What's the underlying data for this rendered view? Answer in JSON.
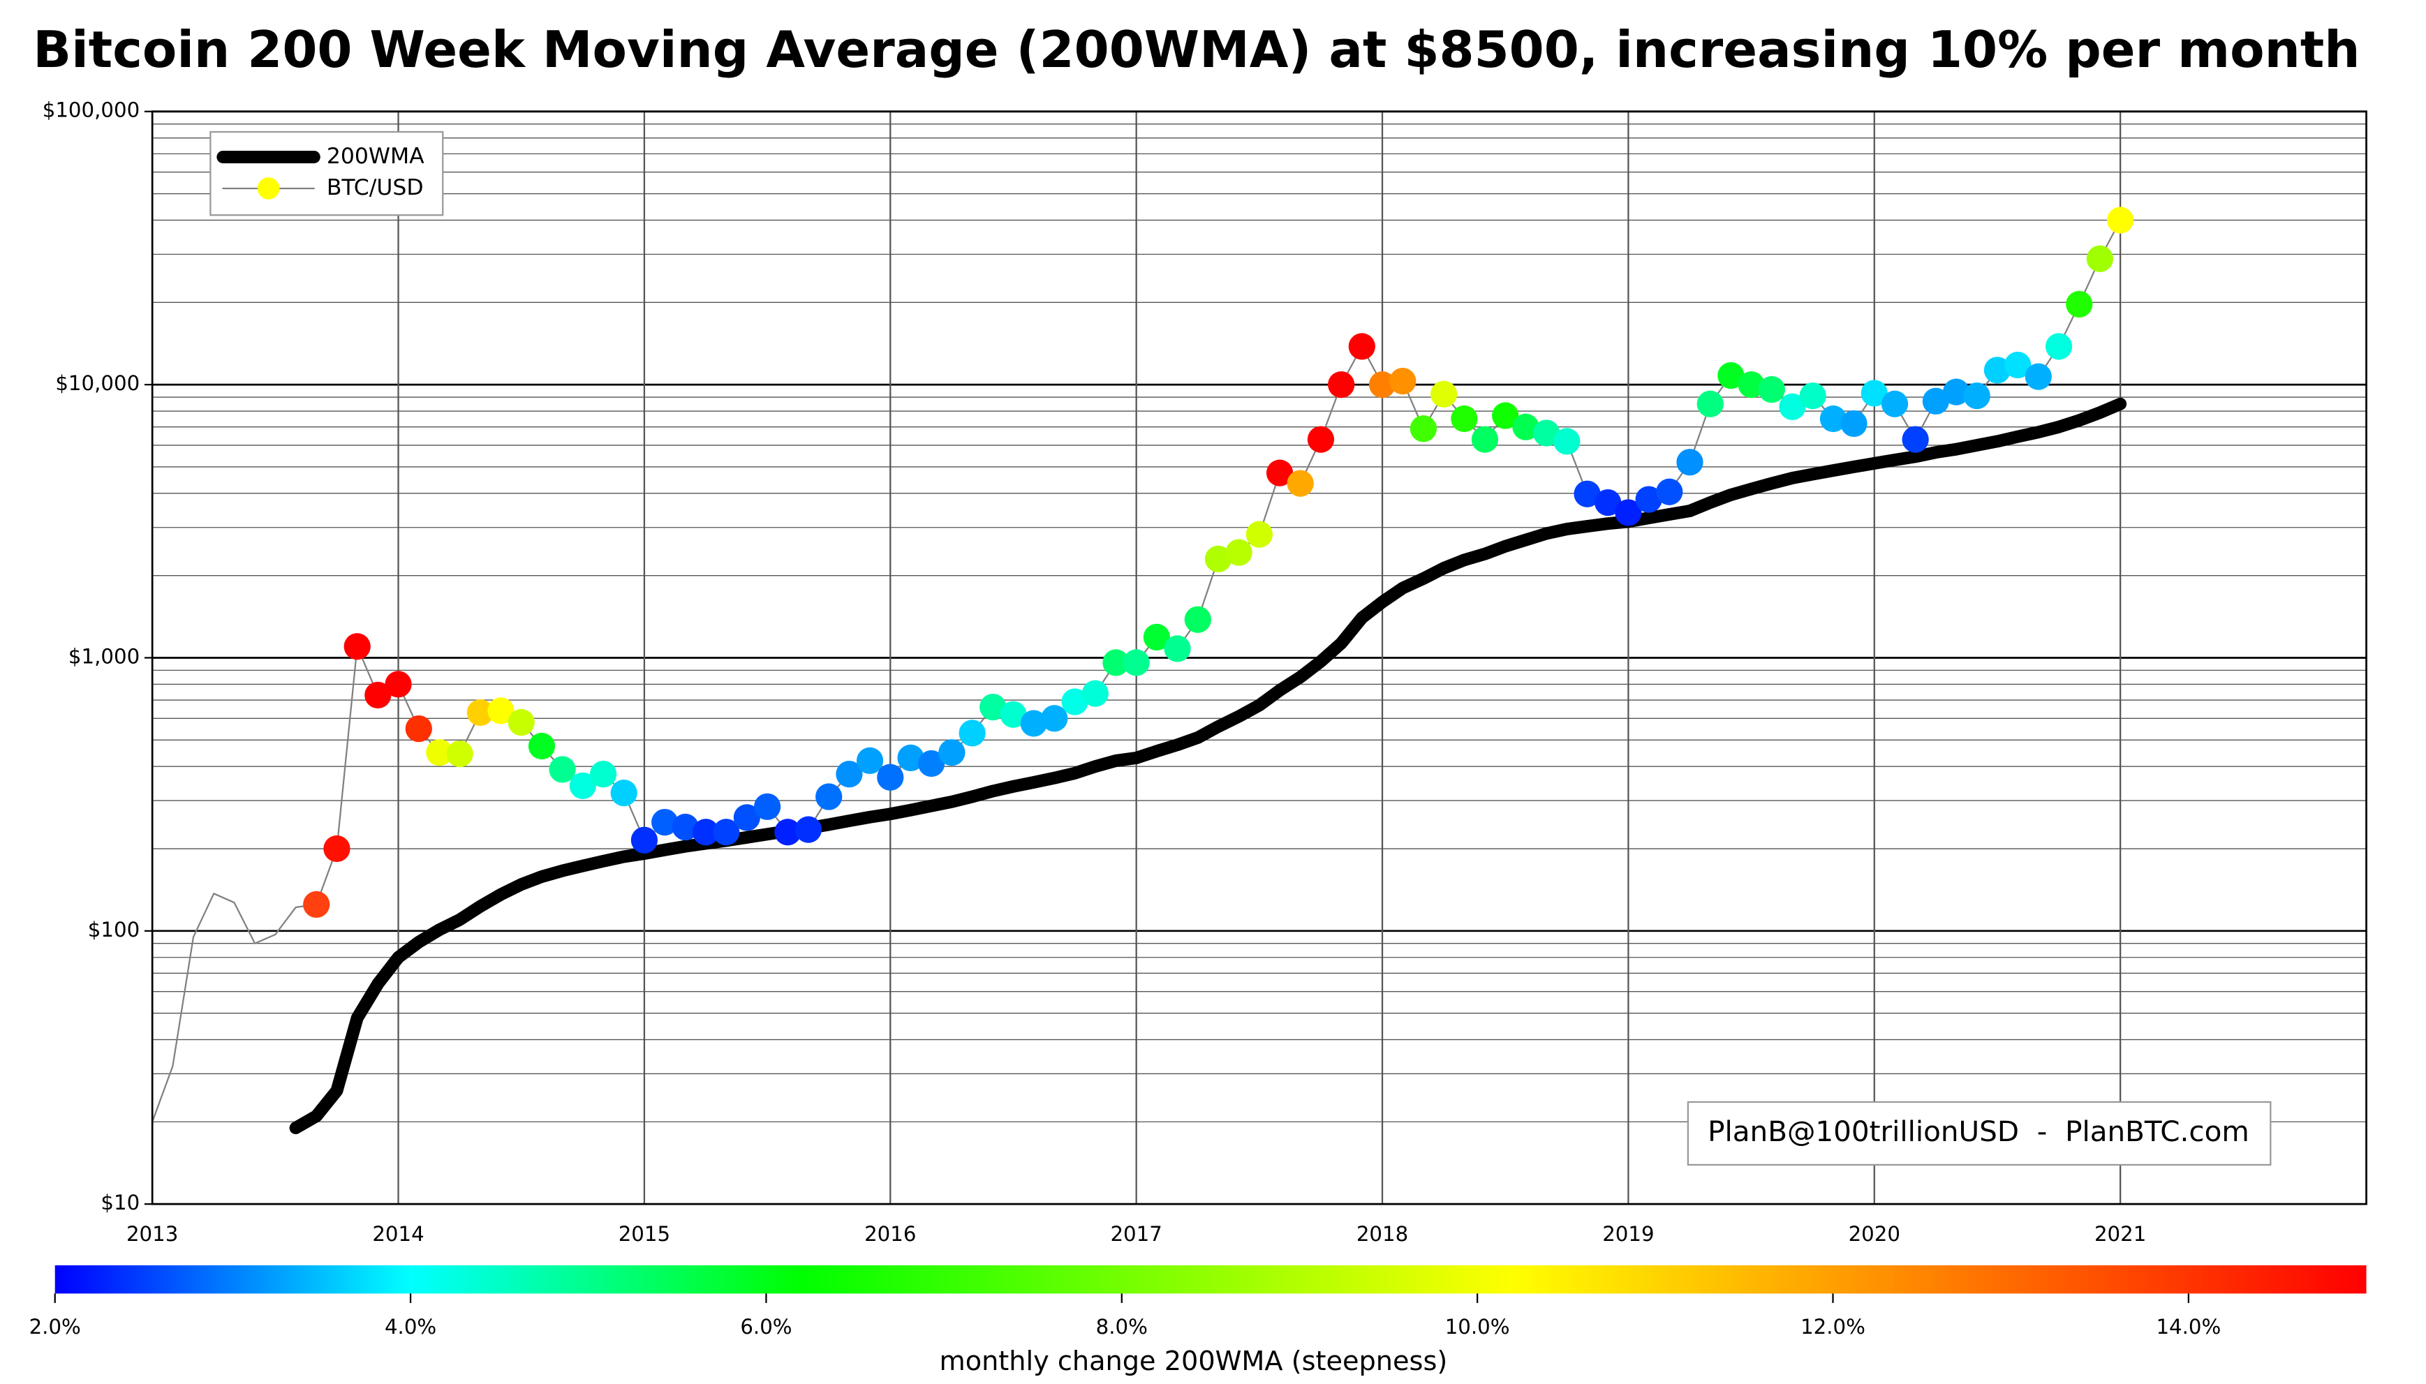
{
  "chart_data": {
    "type": "line",
    "title": "Bitcoin 200 Week Moving Average (200WMA) at $8500, increasing 10% per month",
    "log_y": true,
    "grid": true,
    "legend": "upper left",
    "xlim": [
      2013,
      2022
    ],
    "xticks": [
      2013,
      2014,
      2015,
      2016,
      2017,
      2018,
      2019,
      2020,
      2021
    ],
    "ylim": [
      10,
      100000
    ],
    "yticks": [
      {
        "value": 10,
        "label": "$10"
      },
      {
        "value": 100,
        "label": "$100"
      },
      {
        "value": 1000,
        "label": "$1,000"
      },
      {
        "value": 10000,
        "label": "$10,000"
      },
      {
        "value": 100000,
        "label": "$100,000"
      }
    ],
    "x": [
      2013,
      2013.083,
      2013.167,
      2013.25,
      2013.333,
      2013.417,
      2013.5,
      2013.583,
      2013.667,
      2013.75,
      2013.833,
      2013.917,
      2014,
      2014.083,
      2014.167,
      2014.25,
      2014.333,
      2014.417,
      2014.5,
      2014.583,
      2014.667,
      2014.75,
      2014.833,
      2014.917,
      2015,
      2015.083,
      2015.167,
      2015.25,
      2015.333,
      2015.417,
      2015.5,
      2015.583,
      2015.667,
      2015.75,
      2015.833,
      2015.917,
      2016,
      2016.083,
      2016.167,
      2016.25,
      2016.333,
      2016.417,
      2016.5,
      2016.583,
      2016.667,
      2016.75,
      2016.833,
      2016.917,
      2017,
      2017.083,
      2017.167,
      2017.25,
      2017.333,
      2017.417,
      2017.5,
      2017.583,
      2017.667,
      2017.75,
      2017.833,
      2017.917,
      2018,
      2018.083,
      2018.167,
      2018.25,
      2018.333,
      2018.417,
      2018.5,
      2018.583,
      2018.667,
      2018.75,
      2018.833,
      2018.917,
      2019,
      2019.083,
      2019.167,
      2019.25,
      2019.333,
      2019.417,
      2019.5,
      2019.583,
      2019.667,
      2019.75,
      2019.833,
      2019.917,
      2020,
      2020.083,
      2020.167,
      2020.25,
      2020.333,
      2020.417,
      2020.5,
      2020.583,
      2020.667,
      2020.75,
      2020.833,
      2020.917,
      2021
    ],
    "series": [
      {
        "name": "200WMA",
        "color": "#000000",
        "line_width": 8,
        "values": [
          null,
          null,
          null,
          null,
          null,
          null,
          null,
          19,
          21,
          26,
          48,
          64,
          80,
          91,
          101,
          110,
          123,
          136,
          148,
          158,
          166,
          173,
          180,
          187,
          192,
          198,
          204,
          209,
          214,
          220,
          226,
          232,
          238,
          245,
          253,
          261,
          268,
          277,
          287,
          297,
          310,
          325,
          338,
          350,
          363,
          378,
          400,
          420,
          430,
          455,
          480,
          510,
          560,
          610,
          670,
          760,
          850,
          970,
          1130,
          1400,
          1600,
          1800,
          1950,
          2130,
          2280,
          2400,
          2560,
          2700,
          2850,
          2960,
          3030,
          3100,
          3150,
          3250,
          3350,
          3450,
          3700,
          3950,
          4150,
          4350,
          4550,
          4700,
          4850,
          5000,
          5150,
          5300,
          5450,
          5650,
          5800,
          6000,
          6200,
          6450,
          6700,
          7000,
          7400,
          7900,
          8500
        ]
      },
      {
        "name": "BTC/USD",
        "color": "#808080",
        "line_width": 1,
        "marker_color": "#ffff00",
        "values": [
          20,
          32,
          95,
          137,
          127,
          90,
          97,
          122,
          125,
          200,
          1100,
          730,
          800,
          550,
          450,
          445,
          630,
          640,
          580,
          475,
          390,
          340,
          375,
          320,
          215,
          250,
          240,
          230,
          230,
          260,
          285,
          230,
          235,
          310,
          375,
          420,
          365,
          430,
          410,
          450,
          530,
          660,
          620,
          575,
          600,
          690,
          740,
          960,
          960,
          1190,
          1080,
          1380,
          2300,
          2430,
          2830,
          4750,
          4350,
          6300,
          10000,
          13800,
          10000,
          10300,
          6900,
          9230,
          7500,
          6300,
          7700,
          7000,
          6650,
          6200,
          3980,
          3700,
          3400,
          3800,
          4050,
          5200,
          8500,
          10800,
          10000,
          9600,
          8300,
          9100,
          7500,
          7200,
          9300,
          8500,
          6300,
          8700,
          9400,
          9100,
          11300,
          11800,
          10700,
          13800,
          19700,
          28900,
          40000
        ],
        "point_colors": [
          null,
          null,
          null,
          null,
          null,
          null,
          null,
          null,
          "#ff4010",
          "#ff1000",
          "#ff0000",
          "#ff0000",
          "#ff0000",
          "#ff3000",
          "#f0ff00",
          "#d0ff00",
          "#ffd000",
          "#ffff00",
          "#c8ff00",
          "#00ff20",
          "#00ff90",
          "#00ffe0",
          "#00ffd0",
          "#00d0ff",
          "#0030ff",
          "#0060ff",
          "#0050ff",
          "#0030ff",
          "#0040ff",
          "#0050ff",
          "#0060ff",
          "#0020ff",
          "#0030ff",
          "#0070ff",
          "#0090ff",
          "#00a0ff",
          "#0070ff",
          "#00a0ff",
          "#0080ff",
          "#00a0ff",
          "#00d0ff",
          "#00ffa0",
          "#00ffd0",
          "#00b0ff",
          "#00b0ff",
          "#00ffe8",
          "#00ffd8",
          "#00ff70",
          "#00ff90",
          "#00ff30",
          "#00ff90",
          "#00ff60",
          "#b0ff00",
          "#b8ff00",
          "#d0ff00",
          "#ff0000",
          "#ffa800",
          "#ff0000",
          "#ff0000",
          "#ff0000",
          "#ff8000",
          "#ff9000",
          "#40ff00",
          "#e0ff00",
          "#20ff00",
          "#00ff60",
          "#10ff00",
          "#00ff50",
          "#00ffa0",
          "#00ffd0",
          "#0040ff",
          "#0030ff",
          "#0020ff",
          "#0040ff",
          "#0050ff",
          "#0090ff",
          "#00ff80",
          "#00ff20",
          "#00ff40",
          "#00ff70",
          "#00ffe0",
          "#00ffc8",
          "#00b0ff",
          "#00a0ff",
          "#00e0ff",
          "#00b0ff",
          "#0040ff",
          "#00a0ff",
          "#00a0ff",
          "#00b0ff",
          "#00d0ff",
          "#00e0ff",
          "#00b0ff",
          "#00ffe0",
          "#20ff00",
          "#a0ff00",
          "#ffff00"
        ]
      }
    ],
    "annotation": "PlanB@100trillionUSD  -  PlanBTC.com",
    "colorbar": {
      "label": "monthly change 200WMA (steepness)",
      "lim": [
        2,
        15
      ],
      "ticks": [
        {
          "value": 2,
          "label": "2.0%"
        },
        {
          "value": 4,
          "label": "4.0%"
        },
        {
          "value": 6,
          "label": "6.0%"
        },
        {
          "value": 8,
          "label": "8.0%"
        },
        {
          "value": 10,
          "label": "10.0%"
        },
        {
          "value": 12,
          "label": "12.0%"
        },
        {
          "value": 14,
          "label": "14.0%"
        }
      ],
      "stops": [
        {
          "value": 2,
          "color": "#0000ff"
        },
        {
          "value": 4,
          "color": "#00ffff"
        },
        {
          "value": 6.2,
          "color": "#00ff00"
        },
        {
          "value": 10.2,
          "color": "#ffff00"
        },
        {
          "value": 15,
          "color": "#ff0000"
        }
      ]
    }
  }
}
